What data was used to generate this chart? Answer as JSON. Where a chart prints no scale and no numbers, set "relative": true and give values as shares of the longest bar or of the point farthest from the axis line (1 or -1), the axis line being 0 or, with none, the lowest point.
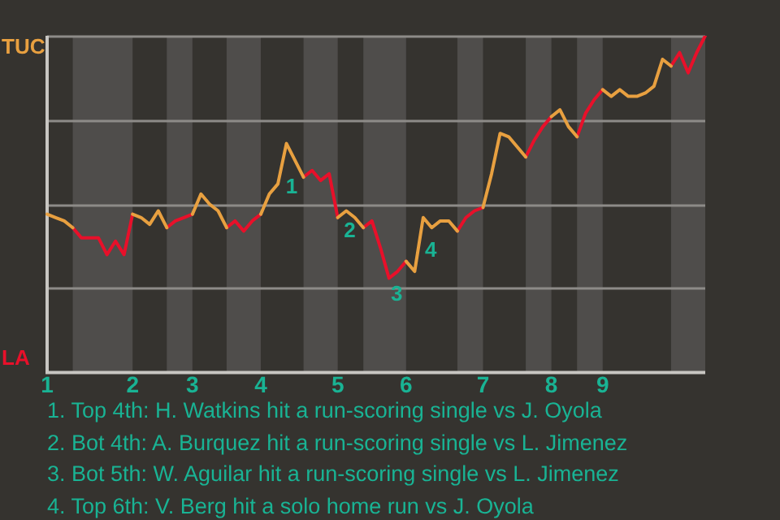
{
  "chart_data": {
    "type": "line",
    "relative": true,
    "legend": false,
    "grid": "y",
    "marker": "none",
    "categories": [
      "1",
      null,
      null,
      null,
      null,
      null,
      null,
      null,
      null,
      null,
      "2",
      null,
      null,
      null,
      null,
      null,
      null,
      "3",
      null,
      null,
      null,
      null,
      null,
      null,
      null,
      "4",
      null,
      null,
      null,
      null,
      null,
      null,
      null,
      null,
      "5",
      null,
      null,
      null,
      null,
      null,
      null,
      null,
      "6",
      null,
      null,
      null,
      null,
      null,
      null,
      null,
      null,
      "7",
      null,
      null,
      null,
      null,
      null,
      null,
      null,
      "8",
      null,
      null,
      null,
      null,
      null,
      "9",
      null,
      null,
      null,
      null,
      null,
      null,
      null,
      null,
      null,
      null,
      null,
      null
    ],
    "series": [
      {
        "name": "TUC",
        "color": "#e8a040",
        "values": [
          0.47,
          0.46,
          0.45,
          0.43,
          null,
          null,
          null,
          null,
          null,
          null,
          0.47,
          0.46,
          0.44,
          0.48,
          0.43,
          null,
          null,
          0.47,
          0.53,
          0.5,
          0.48,
          0.43,
          null,
          null,
          null,
          0.47,
          0.53,
          0.56,
          0.68,
          0.63,
          0.58,
          null,
          null,
          null,
          0.46,
          0.48,
          0.46,
          0.43,
          null,
          null,
          null,
          null,
          0.33,
          0.3,
          0.46,
          0.43,
          0.45,
          0.45,
          0.42,
          null,
          null,
          0.49,
          0.59,
          0.71,
          0.7,
          0.67,
          0.64,
          null,
          null,
          0.76,
          0.78,
          0.73,
          0.7,
          null,
          null,
          0.84,
          0.82,
          0.84,
          0.82,
          0.82,
          0.83,
          0.85,
          0.93,
          0.91,
          null,
          null,
          null,
          null
        ]
      },
      {
        "name": "LA",
        "color": "#e8102a",
        "values": [
          null,
          null,
          null,
          0.43,
          0.4,
          0.4,
          0.4,
          0.35,
          0.39,
          0.35,
          0.47,
          null,
          null,
          null,
          0.43,
          0.45,
          0.46,
          0.47,
          null,
          null,
          null,
          0.43,
          0.45,
          0.42,
          0.45,
          0.47,
          null,
          null,
          null,
          null,
          0.58,
          0.6,
          0.57,
          0.59,
          0.46,
          null,
          null,
          0.43,
          0.45,
          0.37,
          0.28,
          0.3,
          0.33,
          null,
          null,
          null,
          null,
          null,
          0.42,
          0.46,
          0.48,
          0.49,
          null,
          null,
          null,
          null,
          0.64,
          0.69,
          0.73,
          0.76,
          null,
          null,
          0.7,
          0.77,
          0.81,
          0.84,
          null,
          null,
          null,
          null,
          null,
          null,
          null,
          0.91,
          0.95,
          0.89,
          0.95,
          1
        ]
      }
    ],
    "annotations": [
      "1",
      "2",
      "3",
      "4",
      "1. Top 4th: H. Watkins hit a run-scoring single vs J. Oyola",
      "2. Bot 4th: A. Burquez hit a run-scoring single vs L. Jimenez",
      "3. Bot 5th: W. Aguilar hit a run-scoring single vs L. Jimenez",
      "4. Top 6th: V. Berg hit a solo home run vs J. Oyola"
    ]
  }
}
